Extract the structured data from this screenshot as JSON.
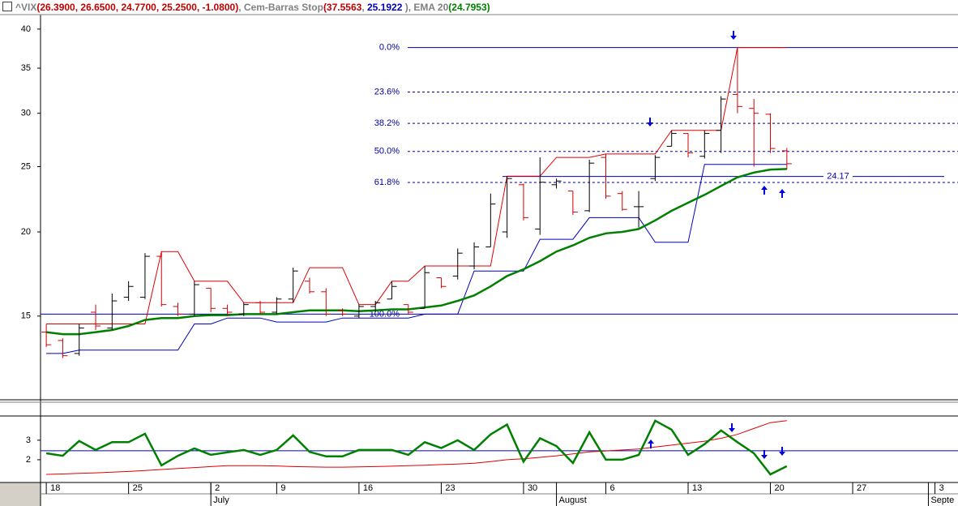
{
  "header": {
    "legend": [
      {
        "text": "^VIX",
        "color": "#808080"
      },
      {
        "text": "(26.3900, 26.6500, 24.7700, 25.2500, -1.0800)",
        "color": "#c00000"
      },
      {
        "text": ", Cem-Barras Stop",
        "color": "#808080"
      },
      {
        "text": "(37.5563",
        "color": "#c00000"
      },
      {
        "text": ", ",
        "color": "#808080"
      },
      {
        "text": "25.1922",
        "color": "#0000c0"
      },
      {
        "text": " ), EMA 20",
        "color": "#808080"
      },
      {
        "text": "(24.7953)",
        "color": "#008000"
      }
    ]
  },
  "chart_data": [
    {
      "type": "ohlc",
      "log_scale": true,
      "ylim": [
        11.3,
        41.8
      ],
      "yticks": [
        15,
        20,
        25,
        30,
        35,
        40
      ],
      "xlim": [
        -0.35,
        55.4
      ],
      "up_color": "#000000",
      "down_color": "#d00000",
      "open": [
        14.2,
        13.8,
        13.2,
        15.2,
        14.4,
        16.0,
        16.0,
        18.4,
        15.5,
        15.1,
        16.5,
        15.4,
        15.1,
        15.7,
        15.2,
        15.9,
        16.9,
        16.3,
        15.3,
        15.0,
        15.5,
        15.9,
        15.6,
        15.4,
        17.1,
        17.2,
        17.8,
        19.0,
        20.0,
        23.5,
        20.2,
        23.5,
        23.0,
        21.5,
        25.8,
        22.8,
        21.8,
        24.0,
        26.8,
        28.0,
        25.9,
        28.3,
        32.0,
        30.5,
        29.9,
        26.39
      ],
      "high": [
        14.6,
        13.9,
        14.6,
        15.6,
        16.2,
        16.9,
        18.6,
        18.7,
        15.7,
        16.9,
        16.5,
        15.6,
        15.7,
        15.8,
        16.0,
        17.7,
        17.1,
        16.5,
        15.4,
        15.6,
        15.8,
        16.9,
        15.6,
        17.8,
        17.1,
        18.9,
        19.3,
        22.8,
        24.2,
        23.6,
        25.8,
        24.0,
        23.0,
        25.6,
        26.1,
        23.0,
        23.0,
        26.0,
        28.3,
        28.0,
        28.3,
        31.8,
        37.5,
        31.5,
        30.0,
        26.65
      ],
      "low": [
        13.5,
        13.0,
        13.1,
        14.3,
        14.3,
        15.8,
        15.9,
        15.5,
        15.0,
        15.0,
        15.2,
        15.0,
        15.0,
        15.1,
        15.1,
        15.7,
        16.2,
        15.0,
        15.0,
        14.9,
        15.2,
        15.9,
        15.1,
        15.4,
        16.5,
        17.0,
        17.6,
        19.0,
        19.6,
        20.8,
        19.8,
        23.2,
        21.2,
        21.4,
        22.4,
        21.5,
        20.3,
        23.8,
        26.8,
        25.8,
        25.7,
        26.2,
        30.0,
        25.0,
        26.2,
        24.77
      ],
      "close": [
        13.6,
        13.1,
        14.4,
        14.5,
        15.8,
        16.6,
        18.4,
        15.6,
        15.1,
        16.7,
        15.4,
        15.2,
        15.6,
        15.2,
        15.9,
        17.5,
        16.3,
        15.1,
        15.1,
        15.5,
        15.7,
        16.6,
        15.2,
        17.4,
        16.6,
        18.6,
        19.0,
        22.0,
        24.0,
        21.0,
        23.7,
        23.8,
        21.4,
        25.3,
        22.6,
        21.6,
        21.8,
        25.8,
        28.0,
        26.2,
        28.0,
        31.5,
        30.7,
        30.0,
        26.6,
        25.25
      ],
      "series": [
        {
          "color": "#e00000",
          "values": [
            14.6,
            14.6,
            14.6,
            14.6,
            14.6,
            14.6,
            14.6,
            18.7,
            18.7,
            16.9,
            16.9,
            16.9,
            15.7,
            15.7,
            15.7,
            15.7,
            17.7,
            17.7,
            17.7,
            15.6,
            15.6,
            16.9,
            16.9,
            17.8,
            17.8,
            17.8,
            17.8,
            17.8,
            24.2,
            24.2,
            24.2,
            25.8,
            25.8,
            25.8,
            26.1,
            26.1,
            26.1,
            26.1,
            28.3,
            28.3,
            28.3,
            28.3,
            37.5563,
            37.5563,
            37.5563,
            37.5563
          ]
        },
        {
          "color": "#0000c0",
          "values": [
            13.2,
            13.2,
            13.35,
            13.35,
            13.35,
            13.35,
            13.35,
            13.35,
            13.35,
            14.6,
            14.6,
            14.9,
            14.9,
            14.9,
            14.7,
            14.7,
            14.7,
            14.7,
            14.9,
            14.9,
            14.9,
            14.9,
            14.9,
            15.1,
            15.1,
            15.1,
            17.5,
            17.5,
            17.5,
            17.5,
            19.5,
            19.5,
            19.5,
            21.0,
            21.0,
            21.0,
            21.0,
            19.3,
            19.3,
            19.3,
            25.19,
            25.19,
            25.19,
            25.19,
            25.19,
            25.1922
          ]
        },
        {
          "color": "#008000",
          "bold": true,
          "values": [
            14.2,
            14.1,
            14.1,
            14.2,
            14.3,
            14.5,
            14.8,
            14.9,
            14.9,
            15.0,
            15.05,
            15.05,
            15.1,
            15.1,
            15.1,
            15.2,
            15.3,
            15.3,
            15.3,
            15.25,
            15.3,
            15.35,
            15.35,
            15.45,
            15.55,
            15.8,
            16.1,
            16.6,
            17.2,
            17.6,
            18.1,
            18.7,
            19.1,
            19.6,
            19.9,
            20.0,
            20.2,
            20.8,
            21.5,
            22.1,
            22.7,
            23.4,
            24.1,
            24.5,
            24.75,
            24.7953
          ]
        }
      ],
      "fib_color": "#0000a0",
      "fib_levels": [
        {
          "value": 37.5563,
          "label": "0.0%",
          "dashed": false
        },
        {
          "value": 32.26,
          "label": "23.6%",
          "dashed": true
        },
        {
          "value": 28.98,
          "label": "38.2%",
          "dashed": true
        },
        {
          "value": 26.33,
          "label": "50.0%",
          "dashed": true
        },
        {
          "value": 23.68,
          "label": "61.8%",
          "dashed": true
        },
        {
          "value": 15.1,
          "label": "100.0%",
          "dashed": false,
          "full_width": true
        }
      ],
      "level_line": {
        "value": 24.17,
        "color": "#0000c0"
      }
    },
    {
      "type": "line",
      "ylim": [
        0.875,
        4.2
      ],
      "yticks": [
        2,
        3
      ],
      "xlim": [
        -0.35,
        55.4
      ],
      "series": [
        {
          "color": "#008000",
          "bold": true,
          "values": [
            2.33,
            2.2,
            2.96,
            2.5,
            2.9,
            2.9,
            3.33,
            1.71,
            2.2,
            2.58,
            2.25,
            2.38,
            2.5,
            2.25,
            2.5,
            3.25,
            2.4,
            2.17,
            2.17,
            2.5,
            2.5,
            2.5,
            2.25,
            2.9,
            2.6,
            3.0,
            2.5,
            3.3,
            3.8,
            1.9,
            3.1,
            2.7,
            1.83,
            3.4,
            2.0,
            2.0,
            2.25,
            4.0,
            3.54,
            2.25,
            2.8,
            3.5,
            2.9,
            2.33,
            1.25,
            1.67
          ]
        },
        {
          "color": "#e00000",
          "values": [
            1.25,
            1.27,
            1.3,
            1.33,
            1.36,
            1.4,
            1.45,
            1.5,
            1.55,
            1.6,
            1.65,
            1.7,
            1.7,
            1.7,
            1.68,
            1.65,
            1.63,
            1.62,
            1.62,
            1.63,
            1.65,
            1.67,
            1.7,
            1.72,
            1.75,
            1.78,
            1.82,
            1.9,
            2.0,
            2.05,
            2.12,
            2.2,
            2.3,
            2.4,
            2.45,
            2.5,
            2.55,
            2.65,
            2.75,
            2.85,
            2.95,
            3.1,
            3.3,
            3.6,
            3.9,
            4.0
          ]
        }
      ],
      "hline": {
        "value": 2.46,
        "color": "#0000c0"
      },
      "xticks": [
        {
          "value": 0,
          "label": "18"
        },
        {
          "value": 5,
          "label": "25"
        },
        {
          "value": 10,
          "label": "2"
        },
        {
          "value": 14,
          "label": "9"
        },
        {
          "value": 19,
          "label": "16"
        },
        {
          "value": 24,
          "label": "23"
        },
        {
          "value": 29,
          "label": "30"
        },
        {
          "value": 34,
          "label": "6"
        },
        {
          "value": 39,
          "label": "13"
        },
        {
          "value": 44,
          "label": "20"
        },
        {
          "value": 49,
          "label": "27"
        },
        {
          "value": 54,
          "label": "3"
        }
      ],
      "month_labels": [
        {
          "value": 10,
          "label": "July"
        },
        {
          "value": 31,
          "label": "August"
        },
        {
          "value": 53.6,
          "label": "Septe"
        }
      ]
    }
  ]
}
